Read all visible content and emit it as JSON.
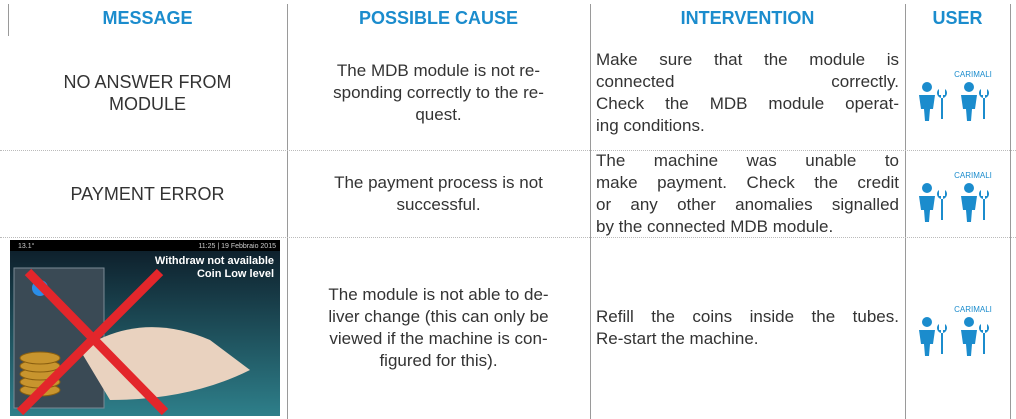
{
  "table": {
    "headers": [
      "MESSAGE",
      "POSSIBLE CAUSE",
      "INTERVENTION",
      "USER"
    ],
    "user_icon_label": "CARIMALI",
    "rows": [
      {
        "message": [
          "NO ANSWER FROM",
          "MODULE"
        ],
        "cause": [
          "The MDB module is not re-",
          "sponding correctly to the re-",
          "quest."
        ],
        "intervention": [
          "Make sure that the module is",
          "connected correctly.",
          "Check the MDB module operat-",
          "ing conditions."
        ]
      },
      {
        "message": [
          "PAYMENT ERROR"
        ],
        "cause": [
          "The payment process is not",
          "successful."
        ],
        "intervention": [
          "The machine was unable to",
          "make payment. Check the credit",
          "or any other anomalies signalled",
          "by the connected MDB module."
        ]
      },
      {
        "screenshot": {
          "status_left": "13.1°",
          "status_right": "11:25 | 19 Febbraio 2015",
          "alert": [
            "Withdraw not available",
            "Coin Low level"
          ]
        },
        "cause": [
          "The module is not able to de-",
          "liver change (this can only be",
          "viewed if the machine is con-",
          "figured for this)."
        ],
        "intervention": [
          "Refill the coins inside the tubes.",
          "Re-start the machine."
        ]
      }
    ]
  }
}
